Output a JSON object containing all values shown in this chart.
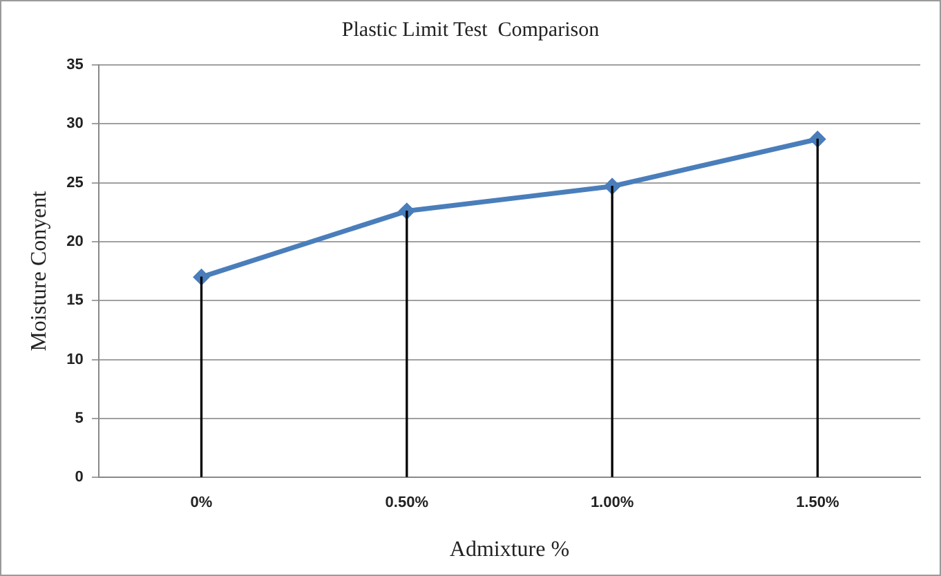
{
  "chart_data": {
    "type": "line",
    "title": "Plastic Limit Test  Comparison",
    "xlabel": "Admixture %",
    "ylabel": "Moisture Conyent",
    "categories": [
      "0%",
      "0.50%",
      "1.00%",
      "1.50%"
    ],
    "series": [
      {
        "type": "bar",
        "color": "#000000",
        "values": [
          17.0,
          22.6,
          24.7,
          28.7
        ]
      },
      {
        "color": "#4a7ebb",
        "values": [
          17.0,
          22.6,
          24.7,
          28.7
        ]
      }
    ],
    "ylim": [
      0,
      35
    ],
    "yticks": [
      0,
      5,
      10,
      15,
      20,
      25,
      30,
      35
    ],
    "grid": "y",
    "legend": false,
    "marker": "diamond",
    "line_style": "solid"
  }
}
